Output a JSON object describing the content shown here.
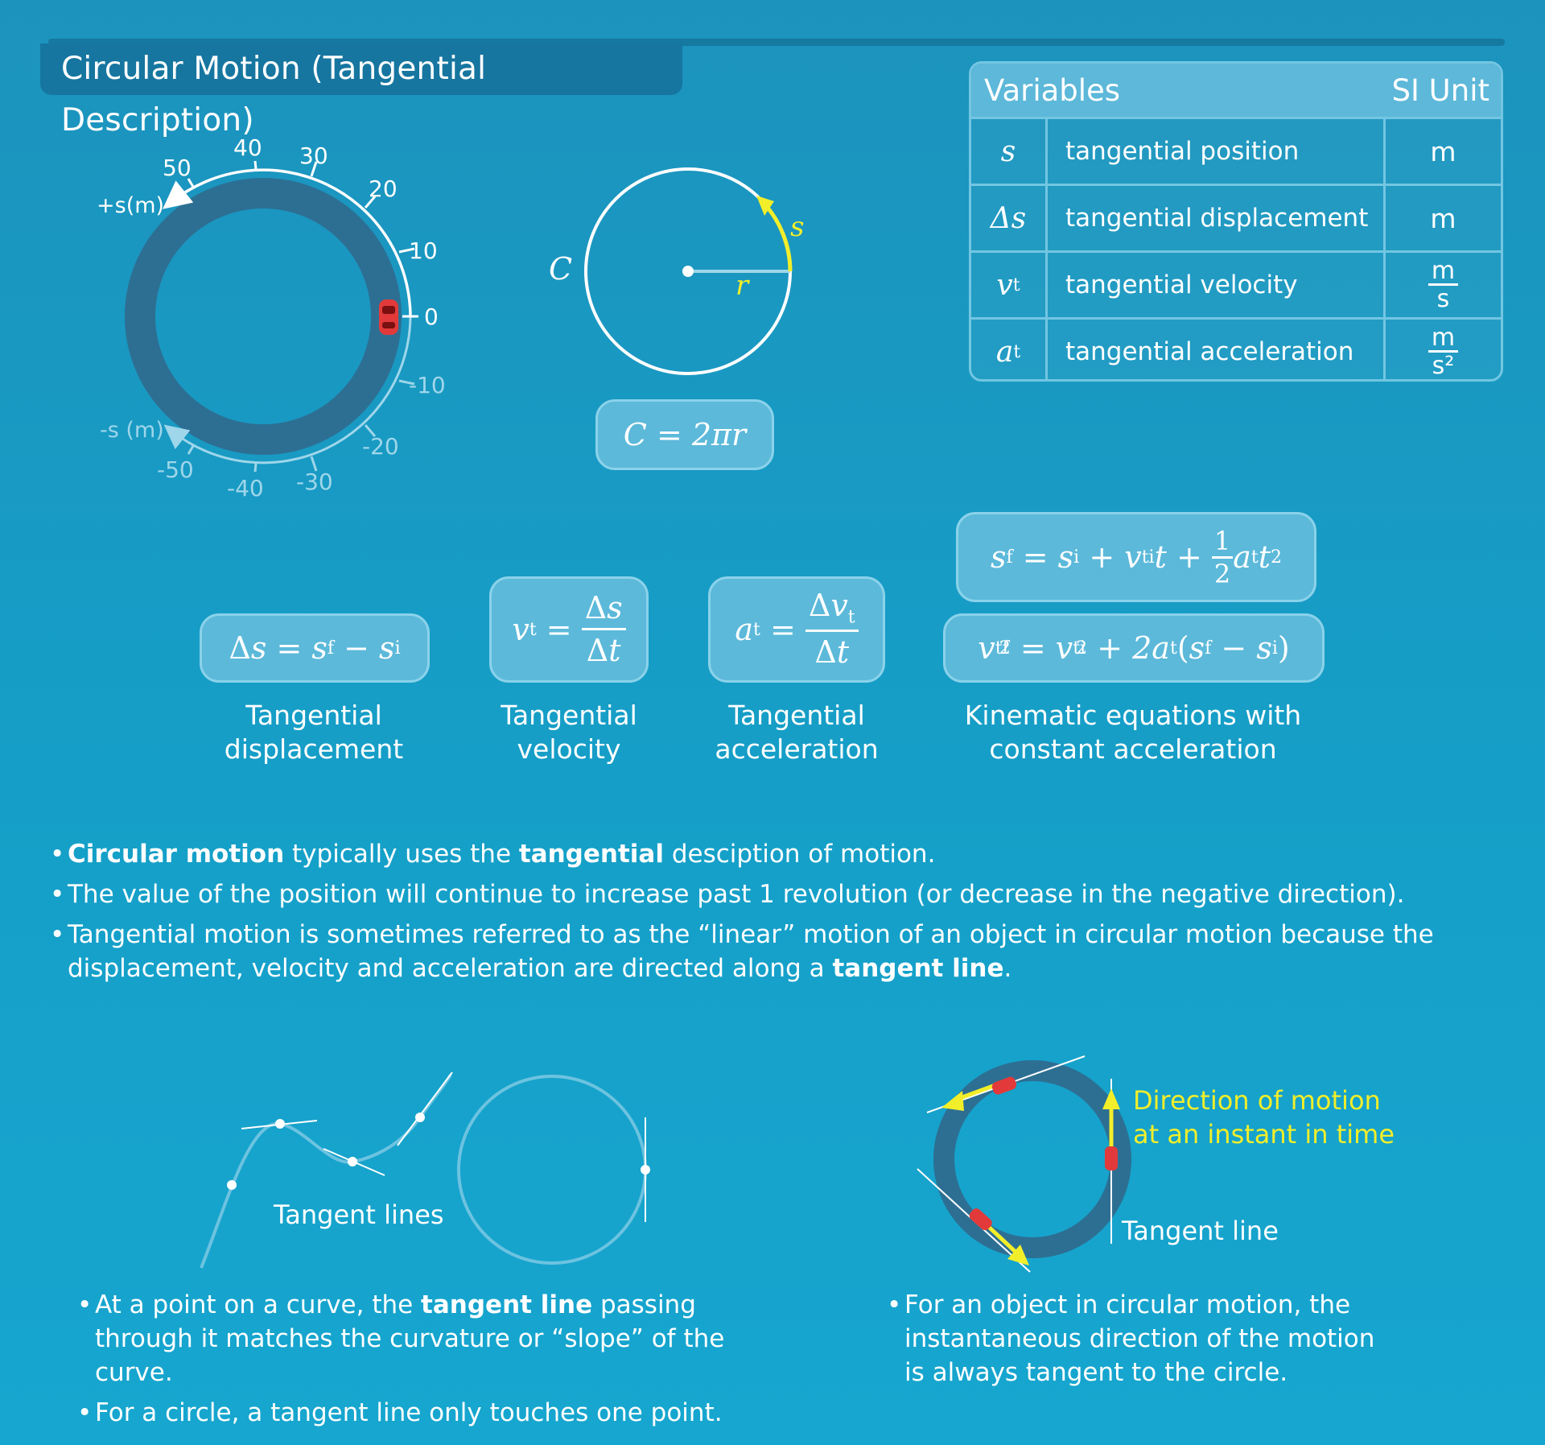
{
  "title": "Circular Motion (Tangential Description)",
  "track": {
    "pos_label": "+s(m)",
    "neg_label": "-s (m)",
    "ticks": [
      "50",
      "40",
      "30",
      "20",
      "10",
      "0",
      "-10",
      "-20",
      "-30",
      "-40",
      "-50"
    ]
  },
  "circle": {
    "c_label": "C",
    "r_label": "r",
    "s_label": "s",
    "formula": "C = 2πr"
  },
  "variables_table": {
    "header_vars": "Variables",
    "header_unit": "SI Unit",
    "rows": [
      {
        "symbol": "s",
        "sub": "",
        "description": "tangential position",
        "unit": "m",
        "unit_den": ""
      },
      {
        "symbol": "Δs",
        "sub": "",
        "description": "tangential displacement",
        "unit": "m",
        "unit_den": ""
      },
      {
        "symbol": "v",
        "sub": "t",
        "description": "tangential velocity",
        "unit": "m",
        "unit_den": "s"
      },
      {
        "symbol": "a",
        "sub": "t",
        "description": "tangential acceleration",
        "unit": "m",
        "unit_den": "s²"
      }
    ]
  },
  "equations": {
    "displacement": "Δs = s_f − s_i",
    "velocity": "v_t = Δs / Δt",
    "acceleration": "a_t = Δv_t / Δt",
    "kinematic_1": "s_f = s_i + v_ti t + 1/2 a_t t²",
    "kinematic_2": "v_tf² = v_ti² + 2a_t(s_f − s_i)"
  },
  "captions": {
    "displacement": [
      "Tangential",
      "displacement"
    ],
    "velocity": [
      "Tangential",
      "velocity"
    ],
    "acceleration": [
      "Tangential",
      "acceleration"
    ],
    "kinematic": [
      "Kinematic equations with",
      "constant acceleration"
    ]
  },
  "bullets": {
    "b1_bold1": "Circular motion",
    "b1_mid": " typically uses the ",
    "b1_bold2": "tangential",
    "b1_end": " desciption of motion.",
    "b2": "The value of the position will continue to increase past 1 revolution (or decrease in the negative direction).",
    "b3_start": "Tangential motion is sometimes referred to as the “linear” motion of an object in circular motion because the displacement, velocity and acceleration are directed along a ",
    "b3_bold": "tangent line",
    "b3_end": "."
  },
  "tangent_section": {
    "label": "Tangent lines",
    "b1_start": "At a point on a curve, the ",
    "b1_bold": "tangent line",
    "b1_end": " passing through it matches the curvature or “slope” of the curve.",
    "b2": "For a circle, a tangent line only touches one point."
  },
  "motion_section": {
    "direction_label_1": "Direction of motion",
    "direction_label_2": "at an instant in time",
    "tangent_label": "Tangent line",
    "bullet": "For an object in circular motion, the instantaneous direction of the motion is always tangent to the circle."
  },
  "colors": {
    "highlight": "#f2ee2a",
    "track": "#2d6f93",
    "car": "#e23a3a",
    "box": "#5cb9da"
  }
}
